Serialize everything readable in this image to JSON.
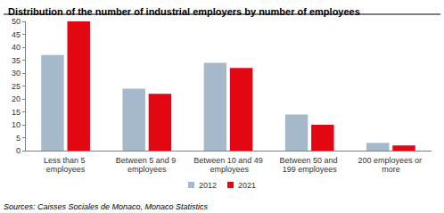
{
  "chart_data": {
    "type": "bar",
    "title": "Distribution of the number of industrial employers by number of employees",
    "source": "Sources: Caisses Sociales de Monaco, Monaco Statistics",
    "categories": [
      "Less than 5 employees",
      "Between 5 and 9 employees",
      "Between 10 and 49 employees",
      "Between 50 and 199 employees",
      "200 employees or more"
    ],
    "series": [
      {
        "name": "2012",
        "color": "#a6b9cb",
        "values": [
          37,
          24,
          34,
          14,
          3
        ]
      },
      {
        "name": "2021",
        "color": "#e30613",
        "values": [
          50,
          22,
          32,
          10,
          2
        ]
      }
    ],
    "ylim": [
      0,
      50
    ],
    "yticks": [
      0,
      5,
      10,
      15,
      20,
      25,
      30,
      35,
      40,
      45,
      50
    ],
    "grid": false,
    "legend": "bottom"
  }
}
